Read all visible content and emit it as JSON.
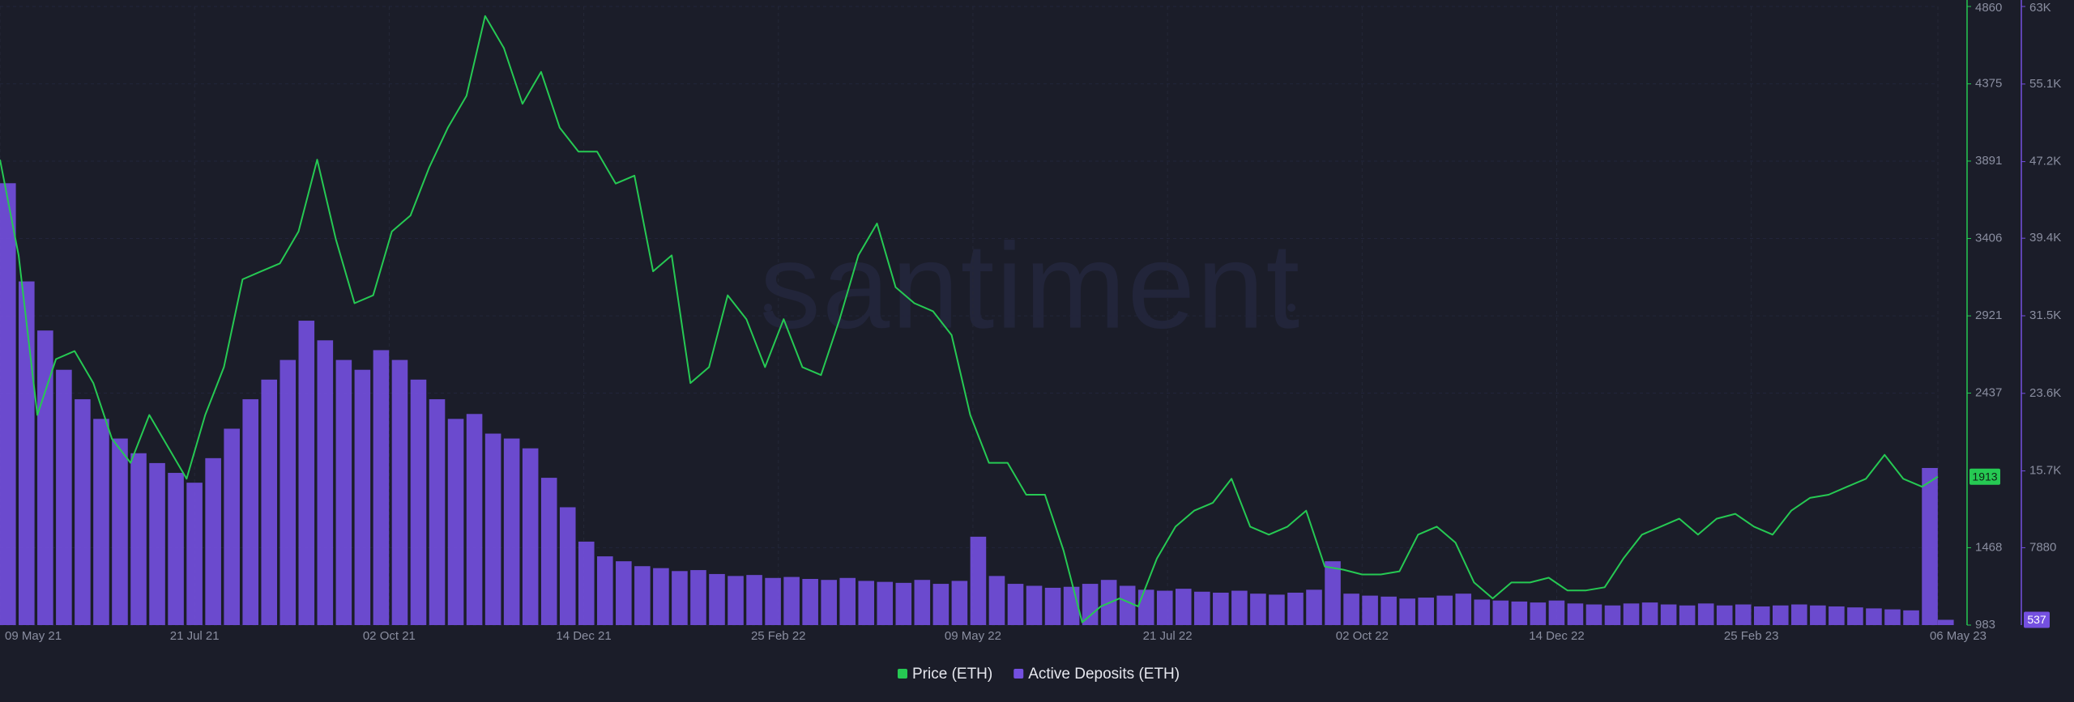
{
  "chart_data": {
    "type": "combo",
    "watermark": "santiment",
    "x": [
      "2021-05-09",
      "2021-05-16",
      "2021-05-23",
      "2021-05-30",
      "2021-06-06",
      "2021-06-13",
      "2021-06-20",
      "2021-06-27",
      "2021-07-04",
      "2021-07-11",
      "2021-07-18",
      "2021-07-25",
      "2021-08-01",
      "2021-08-08",
      "2021-08-15",
      "2021-08-22",
      "2021-08-29",
      "2021-09-05",
      "2021-09-12",
      "2021-09-19",
      "2021-09-26",
      "2021-10-03",
      "2021-10-10",
      "2021-10-17",
      "2021-10-24",
      "2021-10-31",
      "2021-11-07",
      "2021-11-14",
      "2021-11-21",
      "2021-11-28",
      "2021-12-05",
      "2021-12-12",
      "2021-12-19",
      "2021-12-26",
      "2022-01-02",
      "2022-01-09",
      "2022-01-16",
      "2022-01-23",
      "2022-01-30",
      "2022-02-06",
      "2022-02-13",
      "2022-02-20",
      "2022-02-27",
      "2022-03-06",
      "2022-03-13",
      "2022-03-20",
      "2022-03-27",
      "2022-04-03",
      "2022-04-10",
      "2022-04-17",
      "2022-04-24",
      "2022-05-01",
      "2022-05-08",
      "2022-05-15",
      "2022-05-22",
      "2022-05-29",
      "2022-06-05",
      "2022-06-12",
      "2022-06-19",
      "2022-06-26",
      "2022-07-03",
      "2022-07-10",
      "2022-07-17",
      "2022-07-24",
      "2022-07-31",
      "2022-08-07",
      "2022-08-14",
      "2022-08-21",
      "2022-08-28",
      "2022-09-04",
      "2022-09-11",
      "2022-09-18",
      "2022-09-25",
      "2022-10-02",
      "2022-10-09",
      "2022-10-16",
      "2022-10-23",
      "2022-10-30",
      "2022-11-06",
      "2022-11-13",
      "2022-11-20",
      "2022-11-27",
      "2022-12-04",
      "2022-12-11",
      "2022-12-18",
      "2022-12-25",
      "2023-01-01",
      "2023-01-08",
      "2023-01-15",
      "2023-01-22",
      "2023-01-29",
      "2023-02-05",
      "2023-02-12",
      "2023-02-19",
      "2023-02-26",
      "2023-03-05",
      "2023-03-12",
      "2023-03-19",
      "2023-03-26",
      "2023-04-02",
      "2023-04-09",
      "2023-04-16",
      "2023-04-23",
      "2023-04-30",
      "2023-05-06"
    ],
    "xlim": [
      "2021-05-09",
      "2023-05-06"
    ],
    "xticks": [
      {
        "value": "2021-05-09",
        "label": "09 May 21"
      },
      {
        "value": "2021-07-21",
        "label": "21 Jul 21"
      },
      {
        "value": "2021-10-02",
        "label": "02 Oct 21"
      },
      {
        "value": "2021-12-14",
        "label": "14 Dec 21"
      },
      {
        "value": "2022-02-25",
        "label": "25 Feb 22"
      },
      {
        "value": "2022-05-09",
        "label": "09 May 22"
      },
      {
        "value": "2022-07-21",
        "label": "21 Jul 22"
      },
      {
        "value": "2022-10-02",
        "label": "02 Oct 22"
      },
      {
        "value": "2022-12-14",
        "label": "14 Dec 22"
      },
      {
        "value": "2023-02-25",
        "label": "25 Feb 23"
      },
      {
        "value": "2023-05-06",
        "label": "06 May 23"
      }
    ],
    "ylim": [
      983,
      4860
    ],
    "yticks": [
      983,
      1468,
      2437,
      2921,
      3406,
      3891,
      4375,
      4860
    ],
    "y2lim": [
      0,
      63000
    ],
    "y2ticks": [
      7880,
      {
        "value": 15700,
        "label": "15.7K"
      },
      {
        "value": 23600,
        "label": "23.6K"
      },
      {
        "value": 31500,
        "label": "31.5K"
      },
      {
        "value": 39400,
        "label": "39.4K"
      },
      {
        "value": 47200,
        "label": "47.2K"
      },
      {
        "value": 55100,
        "label": "55.1K"
      },
      {
        "value": 63000,
        "label": "63K"
      }
    ],
    "grid": true,
    "series": [
      {
        "name": "Active Deposits (ETH)",
        "type": "bar",
        "axis": "y2",
        "color": "#7450e0",
        "values": [
          45000,
          35000,
          30000,
          26000,
          23000,
          21000,
          19000,
          17500,
          16500,
          15500,
          14500,
          17000,
          20000,
          23000,
          25000,
          27000,
          31000,
          29000,
          27000,
          26000,
          28000,
          27000,
          25000,
          23000,
          21000,
          21500,
          19500,
          19000,
          18000,
          15000,
          12000,
          8500,
          7000,
          6500,
          6000,
          5800,
          5500,
          5600,
          5200,
          5000,
          5100,
          4800,
          4900,
          4700,
          4600,
          4800,
          4500,
          4400,
          4300,
          4600,
          4200,
          4500,
          9000,
          5000,
          4200,
          4000,
          3800,
          3900,
          4200,
          4600,
          4000,
          3600,
          3500,
          3700,
          3400,
          3300,
          3500,
          3200,
          3100,
          3300,
          3600,
          6500,
          3200,
          3000,
          2900,
          2700,
          2800,
          3000,
          3200,
          2600,
          2500,
          2400,
          2300,
          2500,
          2200,
          2100,
          2000,
          2200,
          2300,
          2100,
          2000,
          2200,
          2000,
          2100,
          1900,
          2000,
          2100,
          2000,
          1900,
          1800,
          1700,
          1600,
          1500,
          16000,
          537
        ]
      },
      {
        "name": "Price (ETH)",
        "type": "line",
        "axis": "y",
        "color": "#26c953",
        "values": [
          3900,
          3300,
          2300,
          2650,
          2700,
          2500,
          2150,
          2000,
          2300,
          2100,
          1900,
          2300,
          2600,
          3150,
          3200,
          3250,
          3450,
          3900,
          3400,
          3000,
          3050,
          3450,
          3550,
          3850,
          4100,
          4300,
          4800,
          4600,
          4250,
          4450,
          4100,
          3950,
          3950,
          3750,
          3800,
          3200,
          3300,
          2500,
          2600,
          3050,
          2900,
          2600,
          2900,
          2600,
          2550,
          2900,
          3300,
          3500,
          3100,
          3000,
          2950,
          2800,
          2300,
          2000,
          2000,
          1800,
          1800,
          1450,
          1000,
          1100,
          1150,
          1100,
          1400,
          1600,
          1700,
          1750,
          1900,
          1600,
          1550,
          1600,
          1700,
          1350,
          1330,
          1300,
          1300,
          1320,
          1550,
          1600,
          1500,
          1250,
          1150,
          1250,
          1250,
          1280,
          1200,
          1200,
          1220,
          1400,
          1550,
          1600,
          1650,
          1550,
          1650,
          1680,
          1600,
          1550,
          1700,
          1780,
          1800,
          1850,
          1900,
          2050,
          1900,
          1850,
          1913
        ]
      }
    ]
  }
}
